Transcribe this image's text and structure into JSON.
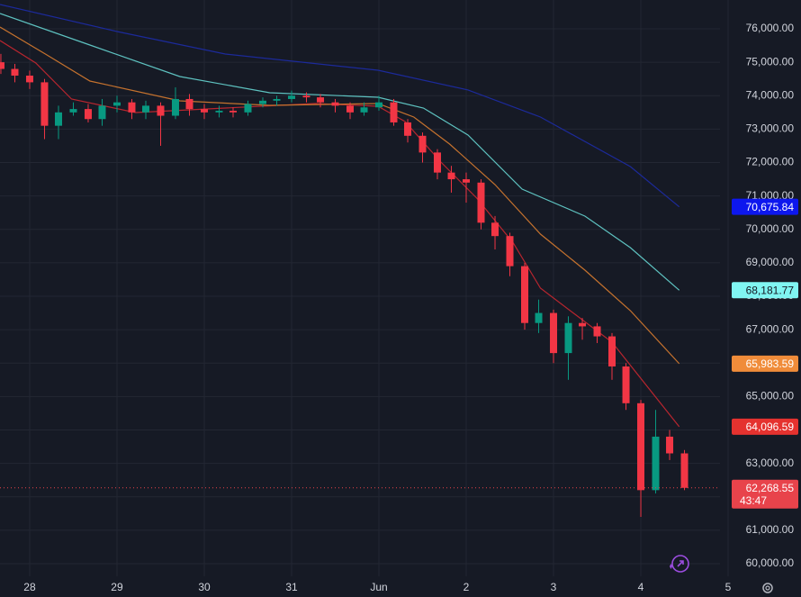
{
  "chart_data": {
    "type": "candlestick",
    "x": [
      -0.33,
      -0.17,
      0,
      0.17,
      0.33,
      0.5,
      0.67,
      0.83,
      1,
      1.17,
      1.33,
      1.5,
      1.67,
      1.83,
      2,
      2.17,
      2.33,
      2.5,
      2.67,
      2.83,
      3,
      3.17,
      3.33,
      3.5,
      3.67,
      3.83,
      4,
      4.17,
      4.33,
      4.5,
      4.67,
      4.83,
      5,
      5.17,
      5.33,
      5.5,
      5.67,
      5.83,
      6,
      6.17,
      6.33,
      6.5,
      6.67,
      6.83,
      7,
      7.17,
      7.33,
      7.5
    ],
    "open": [
      75000,
      74800,
      74600,
      74400,
      73100,
      73500,
      73600,
      73300,
      73700,
      73800,
      73500,
      73700,
      73400,
      73900,
      73600,
      73500,
      73550,
      73500,
      73750,
      73850,
      73900,
      74000,
      73950,
      73800,
      73700,
      73500,
      73650,
      73800,
      73200,
      72800,
      72300,
      71700,
      71500,
      71400,
      70200,
      69800,
      68900,
      67200,
      67500,
      66300,
      67200,
      67100,
      66800,
      65900,
      64800,
      62200,
      63800,
      63300
    ],
    "high": [
      75250,
      74950,
      74750,
      74500,
      73700,
      73800,
      73750,
      73900,
      74000,
      73900,
      73850,
      73800,
      74250,
      74050,
      73750,
      73700,
      73650,
      73850,
      73950,
      74000,
      74150,
      74100,
      74050,
      73900,
      73800,
      73800,
      74000,
      73900,
      73300,
      72900,
      72400,
      71900,
      71700,
      71500,
      70400,
      69900,
      69000,
      67900,
      67600,
      67400,
      67350,
      67200,
      66900,
      66000,
      64900,
      64600,
      64000,
      63400
    ],
    "low": [
      74650,
      74400,
      74200,
      72700,
      72700,
      73400,
      73200,
      73100,
      73500,
      73300,
      73300,
      72500,
      73300,
      73400,
      73300,
      73350,
      73350,
      73400,
      73650,
      73700,
      73800,
      73800,
      73650,
      73500,
      73300,
      73400,
      73550,
      73100,
      72600,
      72000,
      71500,
      71100,
      70800,
      70000,
      69400,
      68600,
      67000,
      66900,
      66000,
      65500,
      66700,
      66600,
      65500,
      64600,
      61400,
      62100,
      63100,
      62200
    ],
    "close": [
      74800,
      74600,
      74400,
      73100,
      73500,
      73600,
      73300,
      73700,
      73800,
      73500,
      73700,
      73400,
      73900,
      73600,
      73500,
      73550,
      73500,
      73750,
      73850,
      73900,
      74000,
      73950,
      73800,
      73700,
      73500,
      73650,
      73800,
      73200,
      72800,
      72300,
      71700,
      71500,
      71400,
      70200,
      69800,
      68900,
      67200,
      67500,
      66300,
      67200,
      67100,
      66800,
      65900,
      64800,
      62200,
      63800,
      63300,
      62268.55
    ],
    "up_color": "#089981",
    "down_color": "#f23645",
    "last_price": {
      "value": 62268.55,
      "label": "62,268.55"
    },
    "countdown": "43:47",
    "last_price_color": "#e8434b",
    "series": [
      {
        "color": "#b8262f",
        "label_color": "#e5322f",
        "last_label": "64,096.59",
        "x": [
          -0.34,
          0.07,
          0.48,
          1.21,
          2.24,
          3.27,
          3.99,
          4.3,
          4.71,
          5.12,
          5.54,
          5.85,
          6.26,
          6.67,
          7.08,
          7.44
        ],
        "values": [
          75650,
          74976,
          73899,
          73495,
          73630,
          73764,
          73683,
          73226,
          72013,
          70936,
          69589,
          68242,
          67434,
          66626,
          65280,
          64096.59
        ]
      },
      {
        "color": "#c5722e",
        "label_color": "#f08c3a",
        "last_label": "65,983.59",
        "x": [
          -0.34,
          0.18,
          0.69,
          1.72,
          2.75,
          3.99,
          4.4,
          4.81,
          5.33,
          5.85,
          6.36,
          6.88,
          7.44
        ],
        "values": [
          76054,
          75246,
          74438,
          73845,
          73710,
          73764,
          73360,
          72552,
          71340,
          69859,
          68781,
          67569,
          65983.59
        ]
      },
      {
        "color": "#5ec2c0",
        "label_color": "#80f5f2",
        "last_label": "68,181.77",
        "x": [
          -0.34,
          0.69,
          1.72,
          2.75,
          3.99,
          4.51,
          5.02,
          5.64,
          6.36,
          6.88,
          7.44
        ],
        "values": [
          76458,
          75515,
          74572,
          74087,
          73953,
          73630,
          72822,
          71205,
          70397,
          69455,
          68181.77
        ]
      },
      {
        "color": "#1c2a9a",
        "label_color": "#0d17ee",
        "last_label": "70,675.84",
        "x": [
          -0.34,
          1,
          2.24,
          3.99,
          5.02,
          5.85,
          6.88,
          7.44
        ],
        "values": [
          76727,
          75919,
          75246,
          74760,
          74170,
          73360,
          71880,
          70675.84
        ]
      }
    ],
    "xlim": [
      -0.34,
      8.01
    ],
    "xticks": [
      {
        "value": 0,
        "label": "28"
      },
      {
        "value": 1,
        "label": "29"
      },
      {
        "value": 2,
        "label": "30"
      },
      {
        "value": 3,
        "label": "31"
      },
      {
        "value": 4,
        "label": "Jun"
      },
      {
        "value": 5,
        "label": "2"
      },
      {
        "value": 6,
        "label": "3"
      },
      {
        "value": 7,
        "label": "4"
      },
      {
        "value": 8,
        "label": "5"
      }
    ],
    "ylim": [
      59623,
      76862
    ],
    "yticks": [
      {
        "value": 60000,
        "label": "60,000.00"
      },
      {
        "value": 61000,
        "label": "61,000.00"
      },
      {
        "value": 62000,
        "label": "62,000.00"
      },
      {
        "value": 63000,
        "label": "63,000.00"
      },
      {
        "value": 64000,
        "label": "64,000.00"
      },
      {
        "value": 65000,
        "label": "65,000.00"
      },
      {
        "value": 66000,
        "label": "66,000.00"
      },
      {
        "value": 67000,
        "label": "67,000.00"
      },
      {
        "value": 68000,
        "label": "68,000.00"
      },
      {
        "value": 69000,
        "label": "69,000.00"
      },
      {
        "value": 70000,
        "label": "70,000.00"
      },
      {
        "value": 71000,
        "label": "71,000.00"
      },
      {
        "value": 72000,
        "label": "72,000.00"
      },
      {
        "value": 73000,
        "label": "73,000.00"
      },
      {
        "value": 74000,
        "label": "74,000.00"
      },
      {
        "value": 75000,
        "label": "75,000.00"
      },
      {
        "value": 76000,
        "label": "76,000.00"
      }
    ],
    "grid": true
  }
}
